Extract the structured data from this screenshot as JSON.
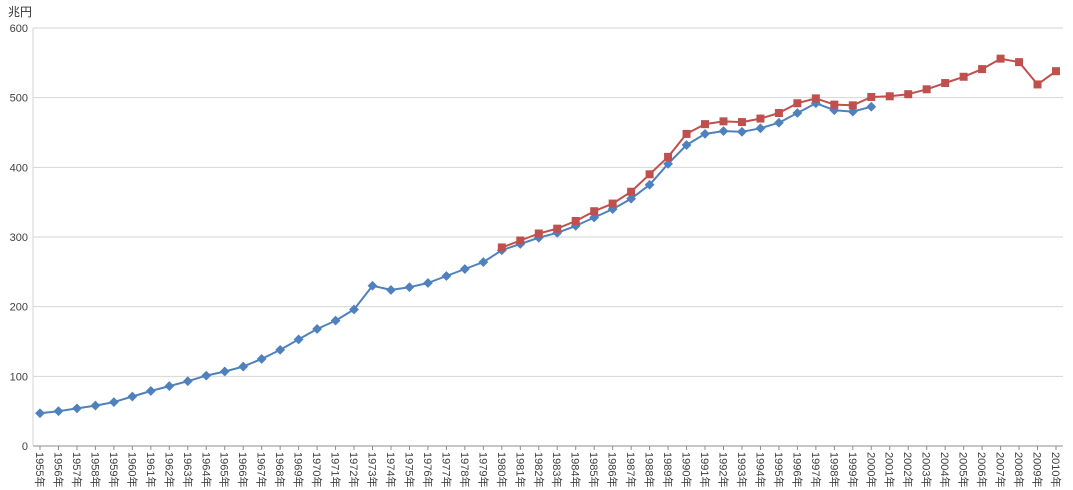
{
  "chart_data": {
    "type": "line",
    "title": "",
    "xlabel": "",
    "ylabel": "兆円",
    "ylim": [
      0,
      600
    ],
    "y_ticks": [
      0,
      100,
      200,
      300,
      400,
      500,
      600
    ],
    "grid": "horizontal",
    "legend": "none",
    "categories": [
      "1955年",
      "1956年",
      "1957年",
      "1958年",
      "1959年",
      "1960年",
      "1961年",
      "1962年",
      "1963年",
      "1964年",
      "1965年",
      "1966年",
      "1967年",
      "1968年",
      "1969年",
      "1970年",
      "1971年",
      "1972年",
      "1973年",
      "1974年",
      "1975年",
      "1976年",
      "1977年",
      "1978年",
      "1979年",
      "1980年",
      "1981年",
      "1982年",
      "1983年",
      "1984年",
      "1985年",
      "1986年",
      "1987年",
      "1988年",
      "1989年",
      "1990年",
      "1991年",
      "1992年",
      "1993年",
      "1994年",
      "1995年",
      "1996年",
      "1997年",
      "1998年",
      "1999年",
      "2000年",
      "2001年",
      "2002年",
      "2003年",
      "2004年",
      "2005年",
      "2006年",
      "2007年",
      "2008年",
      "2009年",
      "2010年"
    ],
    "series": [
      {
        "name": "blue-diamond-series",
        "color": "#4F81BD",
        "marker": "diamond",
        "values": [
          47,
          50,
          54,
          58,
          63,
          71,
          79,
          86,
          93,
          101,
          107,
          114,
          125,
          138,
          153,
          168,
          180,
          196,
          230,
          224,
          228,
          234,
          244,
          254,
          264,
          281,
          290,
          299,
          306,
          316,
          328,
          340,
          355,
          375,
          405,
          432,
          448,
          452,
          451,
          456,
          464,
          478,
          492,
          482,
          480,
          487,
          null,
          null,
          null,
          null,
          null,
          null,
          null,
          null,
          null,
          null
        ]
      },
      {
        "name": "red-square-series",
        "color": "#C0504D",
        "marker": "square",
        "values": [
          null,
          null,
          null,
          null,
          null,
          null,
          null,
          null,
          null,
          null,
          null,
          null,
          null,
          null,
          null,
          null,
          null,
          null,
          null,
          null,
          null,
          null,
          null,
          null,
          null,
          285,
          295,
          305,
          312,
          323,
          337,
          348,
          365,
          390,
          415,
          448,
          462,
          466,
          465,
          470,
          478,
          492,
          499,
          490,
          489,
          501,
          502,
          505,
          512,
          521,
          530,
          541,
          556,
          551,
          519,
          538
        ]
      }
    ]
  }
}
